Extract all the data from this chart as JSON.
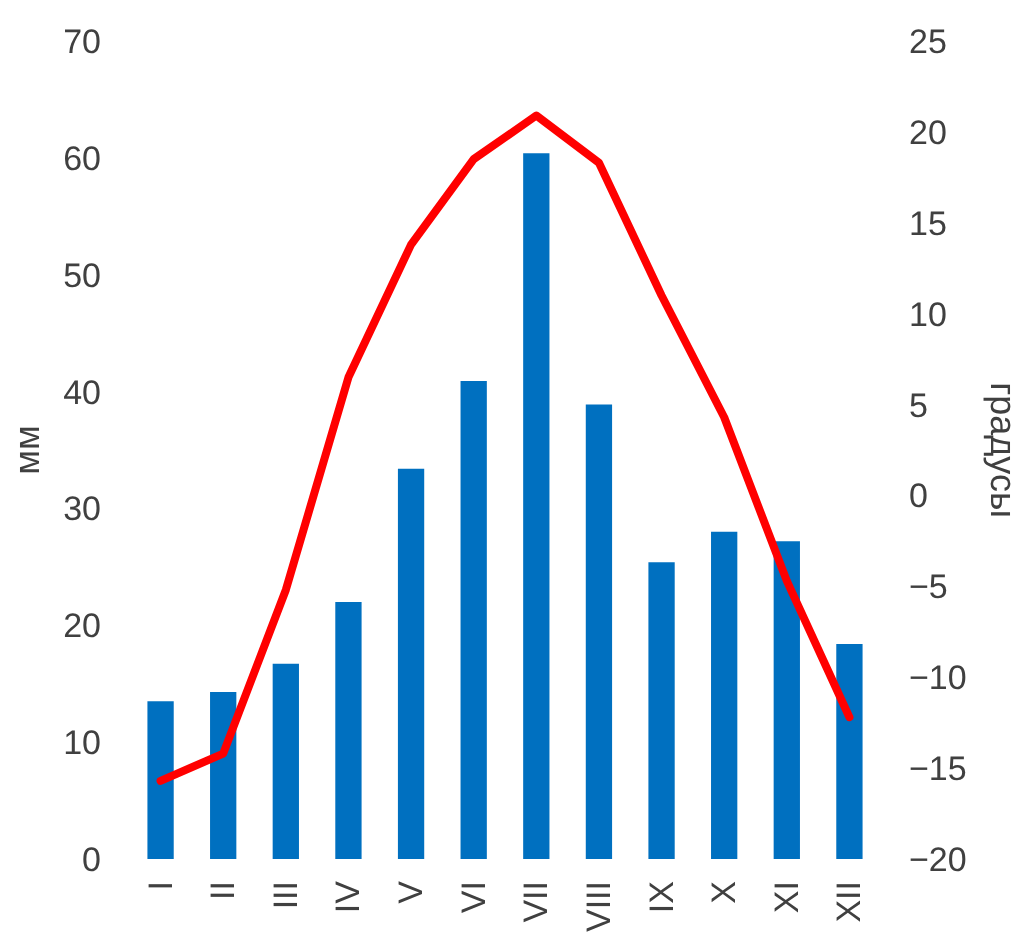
{
  "chart_data": {
    "type": "bar",
    "categories": [
      "I",
      "II",
      "III",
      "IV",
      "V",
      "VI",
      "VII",
      "VIII",
      "IX",
      "X",
      "XI",
      "XII"
    ],
    "ylabel": "мм",
    "y2label": "градусы",
    "ylim": [
      0,
      70
    ],
    "yticks": [
      0,
      10,
      20,
      30,
      40,
      50,
      60,
      70
    ],
    "y2lim": [
      -20,
      25
    ],
    "y2ticks": [
      -20,
      -15,
      -10,
      -5,
      0,
      5,
      10,
      15,
      20,
      25
    ],
    "grid": false,
    "series": [
      {
        "color": "#0070c0",
        "values": [
          13.5,
          14.3,
          16.7,
          22,
          33.4,
          40.9,
          60.4,
          38.9,
          25.4,
          28,
          27.2,
          18.4
        ]
      },
      {
        "type": "line",
        "axis": "y2",
        "color": "#ff0000",
        "values": [
          -15.7,
          -14.2,
          -5.2,
          6.5,
          13.8,
          18.5,
          20.9,
          18.3,
          11,
          4.3,
          -4.7,
          -12.2
        ]
      }
    ]
  }
}
